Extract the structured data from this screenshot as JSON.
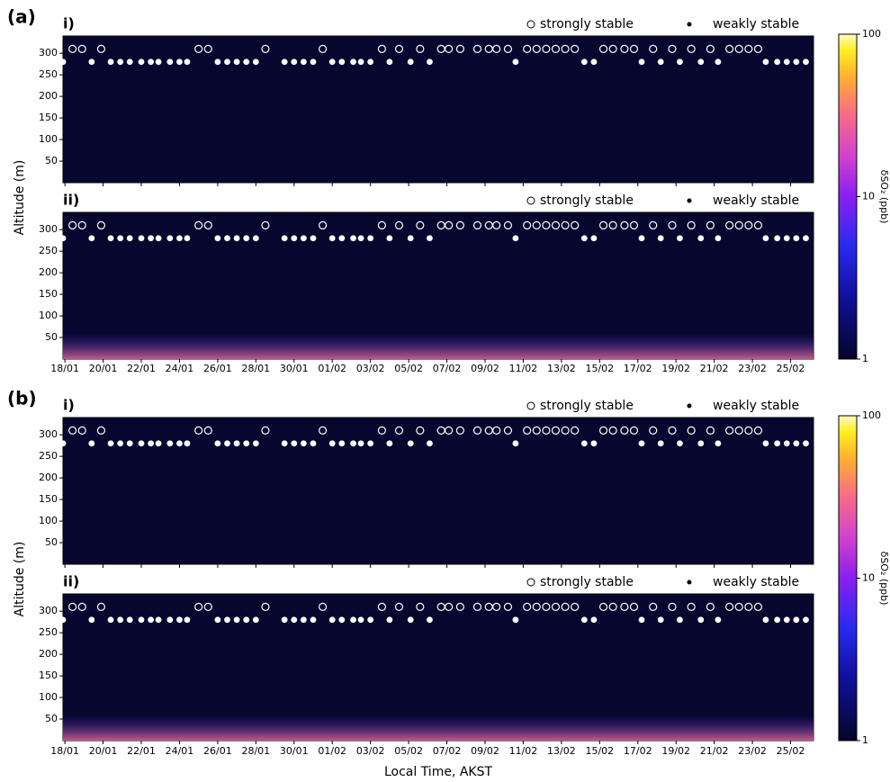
{
  "chart_data": {
    "type": "heatmap",
    "xlabel": "Local Time, AKST",
    "xlim": [
      17.9,
      57.2
    ],
    "xticks": [
      {
        "value": 18,
        "label": "18/01"
      },
      {
        "value": 20,
        "label": "20/01"
      },
      {
        "value": 22,
        "label": "22/01"
      },
      {
        "value": 24,
        "label": "24/01"
      },
      {
        "value": 26,
        "label": "26/01"
      },
      {
        "value": 28,
        "label": "28/01"
      },
      {
        "value": 30,
        "label": "30/01"
      },
      {
        "value": 32,
        "label": "01/02"
      },
      {
        "value": 34,
        "label": "03/02"
      },
      {
        "value": 36,
        "label": "05/02"
      },
      {
        "value": 38,
        "label": "07/02"
      },
      {
        "value": 40,
        "label": "09/02"
      },
      {
        "value": 42,
        "label": "11/02"
      },
      {
        "value": 44,
        "label": "13/02"
      },
      {
        "value": 46,
        "label": "15/02"
      },
      {
        "value": 48,
        "label": "17/02"
      },
      {
        "value": 50,
        "label": "19/02"
      },
      {
        "value": 52,
        "label": "21/02"
      },
      {
        "value": 54,
        "label": "23/02"
      },
      {
        "value": 56,
        "label": "25/02"
      }
    ],
    "ylim": [
      0,
      340
    ],
    "yticks": [
      50,
      100,
      150,
      200,
      250,
      300
    ],
    "colorbar": {
      "label": "δSO₂ (ppb)",
      "log": true,
      "lim": [
        1,
        100
      ],
      "ticks": [
        1,
        10,
        100
      ]
    },
    "series": [
      {
        "name": "strongly stable",
        "marker": "open",
        "color": "#ffffff",
        "y": 310,
        "x": [
          18.4,
          18.9,
          19.9,
          25.0,
          25.5,
          28.5,
          31.5,
          34.6,
          35.5,
          36.6,
          37.7,
          38.1,
          38.7,
          39.6,
          40.2,
          40.6,
          41.2,
          42.2,
          42.7,
          43.2,
          43.7,
          44.2,
          44.7,
          46.2,
          46.7,
          47.3,
          47.8,
          48.8,
          49.8,
          50.8,
          51.8,
          52.8,
          53.3,
          53.8,
          54.3
        ]
      },
      {
        "name": "weakly stable",
        "marker": "filled",
        "color": "#ffffff",
        "y": 280,
        "x": [
          17.9,
          19.4,
          20.4,
          20.9,
          21.4,
          22.0,
          22.5,
          22.9,
          23.5,
          24.0,
          24.4,
          26.0,
          26.5,
          27.0,
          27.5,
          28.0,
          29.5,
          30.0,
          30.5,
          31.0,
          32.0,
          32.5,
          33.1,
          33.5,
          34.0,
          35.0,
          36.1,
          37.1,
          41.6,
          45.2,
          45.7,
          48.2,
          49.2,
          50.2,
          51.3,
          52.2,
          54.7,
          55.3,
          55.8,
          56.3,
          56.8
        ]
      }
    ],
    "groups": [
      {
        "label": "(a)",
        "ylabel": "Altitude (m)",
        "panels": [
          "i)",
          "ii)"
        ]
      },
      {
        "label": "(b)",
        "ylabel": "Altitude (m)",
        "panels": [
          "i)",
          "ii)"
        ]
      }
    ]
  }
}
